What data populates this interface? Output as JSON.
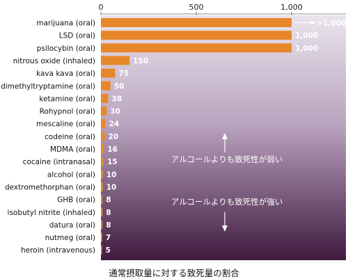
{
  "chart_data": {
    "type": "bar",
    "orientation": "horizontal",
    "xlim": [
      0,
      1000
    ],
    "x_ticks": [
      "0",
      "500",
      "1,000"
    ],
    "x_tick_values": [
      0,
      500,
      1000
    ],
    "categories": [
      "marijuana (oral)",
      "LSD (oral)",
      "psilocybin (oral)",
      "nitrous oxide (inhaled)",
      "kava kava (oral)",
      "dimethyltryptamine (oral)",
      "ketamine (oral)",
      "Rohypnol (oral)",
      "mescaline (oral)",
      "codeine (oral)",
      "MDMA (oral)",
      "cocaine (intranasal)",
      "alcohol (oral)",
      "dextromethorphan (oral)",
      "GHB (oral)",
      "isobutyl nitrite (inhaled)",
      "datura (oral)",
      "nutmeg (oral)",
      "heroin (intravenous)"
    ],
    "values": [
      1000,
      1000,
      1000,
      150,
      75,
      50,
      38,
      30,
      24,
      20,
      16,
      15,
      10,
      10,
      8,
      8,
      8,
      7,
      5
    ],
    "value_labels": [
      "",
      "1,000",
      "1,000",
      "150",
      "75",
      "50",
      "38",
      "30",
      "24",
      "20",
      "16",
      "15",
      "10",
      "10",
      "8",
      "8",
      "8",
      "7",
      "5"
    ],
    "overflow_label": ">1,000",
    "annotations": {
      "upper": "アルコールよりも致死性が弱い",
      "lower": "アルコールよりも致死性が強い"
    },
    "caption": "通常摂取量に対する致死量の割合",
    "colors": {
      "bar": "#E8872A",
      "bg_top": "#E9E4EC",
      "bg_mid": "#B9A2BE",
      "bg_bottom": "#3F1A3E"
    }
  }
}
